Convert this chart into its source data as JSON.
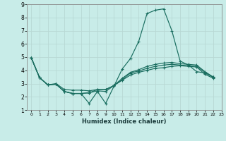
{
  "xlabel": "Humidex (Indice chaleur)",
  "bg_color": "#c8ece8",
  "grid_color": "#b8d8d4",
  "line_color": "#1a6e60",
  "xlim": [
    -0.5,
    23
  ],
  "ylim": [
    1,
    9
  ],
  "xticks": [
    0,
    1,
    2,
    3,
    4,
    5,
    6,
    7,
    8,
    9,
    10,
    11,
    12,
    13,
    14,
    15,
    16,
    17,
    18,
    19,
    20,
    21,
    22,
    23
  ],
  "yticks": [
    1,
    2,
    3,
    4,
    5,
    6,
    7,
    8,
    9
  ],
  "series": [
    [
      4.95,
      3.45,
      2.9,
      2.95,
      2.4,
      2.25,
      2.25,
      1.5,
      2.4,
      1.5,
      2.8,
      4.1,
      4.9,
      6.2,
      8.3,
      8.55,
      8.65,
      7.0,
      4.7,
      4.4,
      3.9,
      3.8,
      3.5
    ],
    [
      4.95,
      3.45,
      2.9,
      2.95,
      2.4,
      2.25,
      2.25,
      2.3,
      2.55,
      2.55,
      2.85,
      3.4,
      3.85,
      4.05,
      4.3,
      4.45,
      4.55,
      4.6,
      4.5,
      4.45,
      4.4,
      3.9,
      3.5
    ],
    [
      4.95,
      3.45,
      2.9,
      2.95,
      2.4,
      2.25,
      2.25,
      2.3,
      2.45,
      2.4,
      2.85,
      3.3,
      3.8,
      3.95,
      4.15,
      4.3,
      4.4,
      4.45,
      4.4,
      4.35,
      4.3,
      3.85,
      3.45
    ],
    [
      4.95,
      3.45,
      2.9,
      3.0,
      2.55,
      2.5,
      2.5,
      2.45,
      2.55,
      2.55,
      2.85,
      3.25,
      3.65,
      3.85,
      4.0,
      4.15,
      4.2,
      4.3,
      4.35,
      4.3,
      4.25,
      3.7,
      3.4
    ]
  ]
}
